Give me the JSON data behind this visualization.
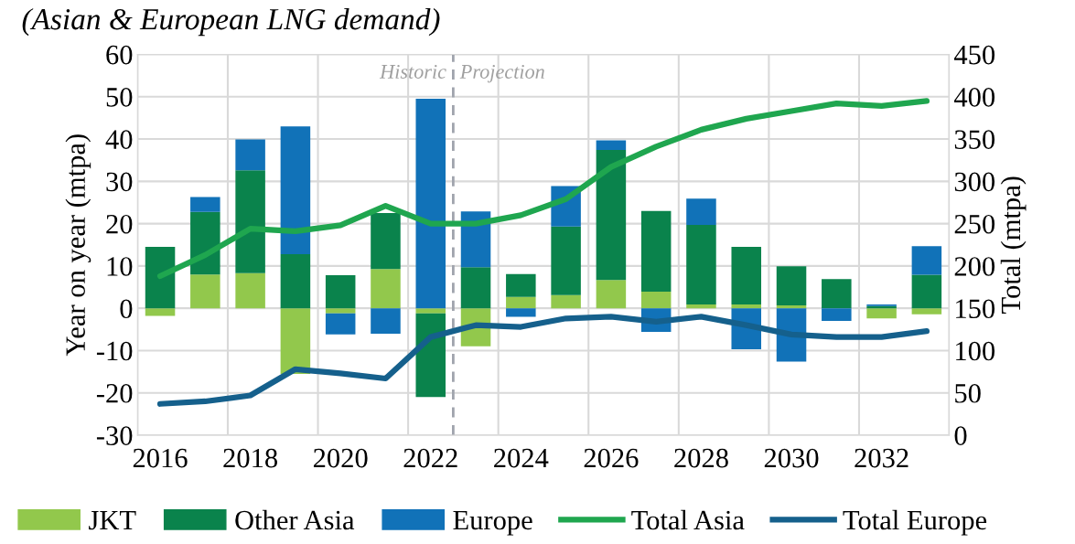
{
  "chart_data": {
    "type": "bar",
    "title": "(Asian & European LNG demand)",
    "x": [
      2016,
      2017,
      2018,
      2019,
      2020,
      2021,
      2022,
      2023,
      2024,
      2025,
      2026,
      2027,
      2028,
      2029,
      2030,
      2031,
      2032,
      2033
    ],
    "xlim": [
      2015.5,
      2033.5
    ],
    "xticks": [
      2016,
      2018,
      2020,
      2022,
      2024,
      2026,
      2028,
      2030,
      2032
    ],
    "ylabel": "Year on year (mtpa)",
    "y2label": "Total (mtpa)",
    "ylim": [
      -30,
      60
    ],
    "yticks": [
      -30,
      -20,
      -10,
      0,
      10,
      20,
      30,
      40,
      50,
      60
    ],
    "y2lim": [
      0,
      450
    ],
    "y2ticks": [
      0,
      50,
      100,
      150,
      200,
      250,
      300,
      350,
      400,
      450
    ],
    "stacked": true,
    "grid": true,
    "legend": "bottom",
    "series": [
      {
        "name": "JKT",
        "color": "#92c84c",
        "values": [
          -1.8,
          8.0,
          8.3,
          -15.5,
          -1.2,
          9.3,
          -1.2,
          -9.0,
          2.7,
          3.1,
          6.7,
          3.9,
          0.9,
          0.9,
          0.7,
          0,
          -2.4,
          -1.4
        ]
      },
      {
        "name": "Other Asia",
        "color": "#0a834c",
        "values": [
          14.5,
          14.8,
          24.3,
          12.8,
          7.8,
          13.2,
          -19.8,
          9.7,
          5.4,
          16.2,
          30.7,
          19.1,
          18.8,
          13.6,
          9.2,
          6.9,
          0.5,
          7.9
        ]
      },
      {
        "name": "Europe",
        "color": "#1172b8",
        "values": [
          0,
          3.5,
          7.3,
          30.2,
          -5.0,
          -6.0,
          49.5,
          13.2,
          -2.0,
          9.6,
          2.3,
          -5.6,
          6.2,
          -9.7,
          -12.6,
          -3.0,
          0.4,
          6.8
        ]
      },
      {
        "name": "Total Asia",
        "type": "line",
        "axis": "y2",
        "color": "#1fa64f",
        "values": [
          188,
          213,
          244,
          241,
          248,
          271,
          250,
          250,
          260,
          279,
          317,
          341,
          361,
          374,
          383,
          392,
          389,
          395
        ]
      },
      {
        "name": "Total Europe",
        "type": "line",
        "axis": "y2",
        "color": "#15608c",
        "values": [
          37,
          40,
          47,
          78,
          73,
          67,
          116,
          130,
          128,
          138,
          140,
          134,
          140,
          130,
          119,
          116,
          116,
          123
        ]
      }
    ],
    "ref_lines": [
      {
        "axis": "x",
        "value": 2022.5,
        "color": "#a0a4ad",
        "line_style": "dashed"
      }
    ],
    "annotations": [
      "Historic",
      "Projection"
    ]
  }
}
